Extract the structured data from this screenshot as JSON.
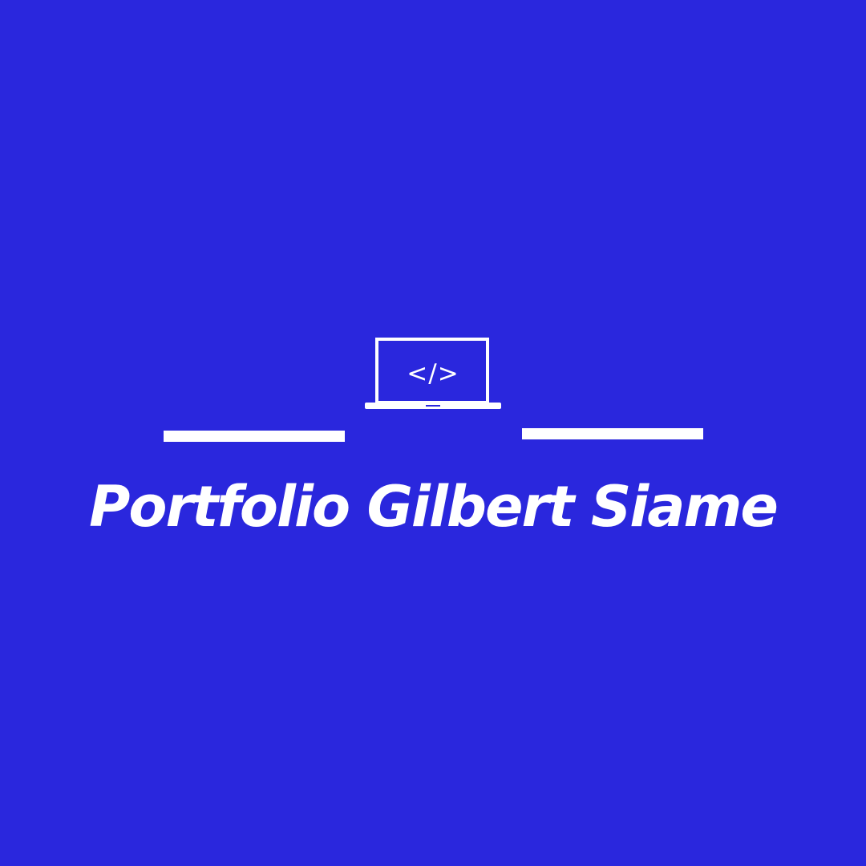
{
  "background_color": "#2a27dd",
  "foreground_color": "#ffffff",
  "logo": {
    "icon": "laptop-code-icon",
    "code_symbol": "</>",
    "title": "Portfolio Gilbert Siame"
  }
}
